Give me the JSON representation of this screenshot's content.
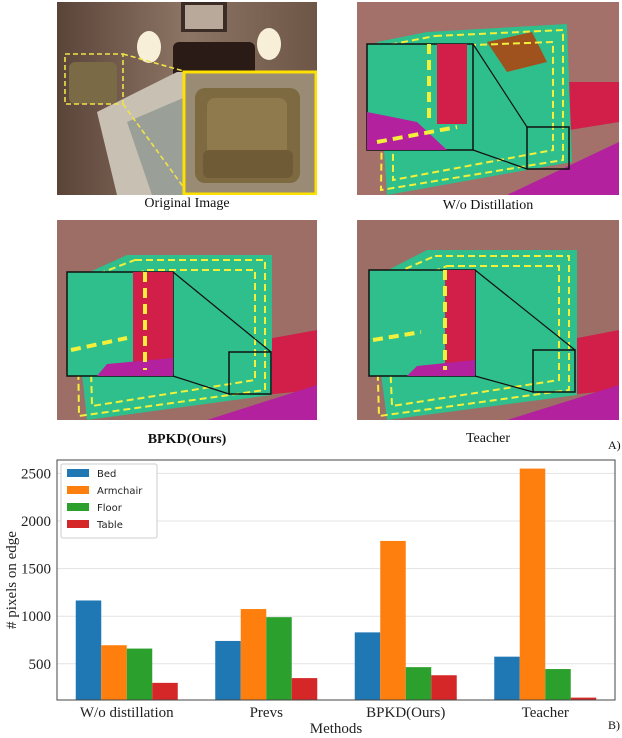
{
  "figure": {
    "captions": {
      "original": "Original Image",
      "wo_distillation": "W/o Distillation",
      "bpkd": "BPKD(Ours)",
      "teacher": "Teacher"
    },
    "part_labels": {
      "a": "A)",
      "b": "B)"
    }
  },
  "colors": {
    "bed": "#1f77b4",
    "armchair": "#ff7f0e",
    "floor": "#2ca02c",
    "table": "#d62728",
    "seg_teal": "#2fbf8c",
    "seg_red": "#d11f4a",
    "seg_magenta": "#b3219f",
    "seg_brown": "#a0521e",
    "boundary_dash": "#f3f03c",
    "zoom_box": "#ffe100"
  },
  "chart_data": {
    "type": "bar",
    "categories": [
      "W/o distillation",
      "Prevs",
      "BPKD(Ours)",
      "Teacher"
    ],
    "series": [
      {
        "name": "Bed",
        "values": [
          1165,
          740,
          830,
          575
        ]
      },
      {
        "name": "Armchair",
        "values": [
          695,
          1075,
          1790,
          2550
        ]
      },
      {
        "name": "Floor",
        "values": [
          660,
          990,
          465,
          445
        ]
      },
      {
        "name": "Table",
        "values": [
          300,
          350,
          380,
          145
        ]
      }
    ],
    "xlabel": "Methods",
    "ylabel": "# pixels on edge",
    "ylim": [
      120,
      2640
    ],
    "yticks": [
      500,
      1000,
      1500,
      2000,
      2500
    ],
    "grid": true,
    "legend_position": "top-left"
  }
}
